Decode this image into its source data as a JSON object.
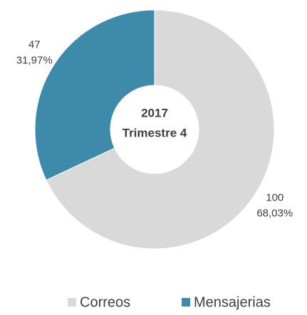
{
  "chart_data": {
    "type": "donut",
    "center_text": [
      "2017",
      "Trimestre 4"
    ],
    "categories": [
      "Correos",
      "Mensajerias"
    ],
    "values": [
      100,
      47
    ],
    "percent_labels": [
      "68,03%",
      "31,97%"
    ],
    "colors": [
      "#d9d9d9",
      "#3d8aab"
    ],
    "legend": "bottom"
  }
}
